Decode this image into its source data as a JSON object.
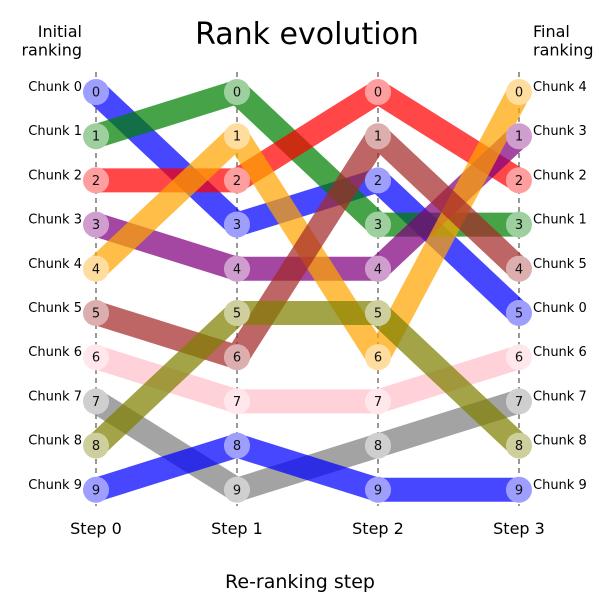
{
  "chart_data": {
    "type": "line",
    "title": "Rank evolution",
    "xlabel": "Re-ranking step",
    "left_axis_title": "Initial\nranking",
    "right_axis_title": "Final\nranking",
    "steps": [
      "Step 0",
      "Step 1",
      "Step 2",
      "Step 3"
    ],
    "rank_range": [
      0,
      9
    ],
    "initial_labels": [
      "Chunk 0",
      "Chunk 1",
      "Chunk 2",
      "Chunk 3",
      "Chunk 4",
      "Chunk 5",
      "Chunk 6",
      "Chunk 7",
      "Chunk 8",
      "Chunk 9"
    ],
    "final_labels": [
      "Chunk 4",
      "Chunk 3",
      "Chunk 2",
      "Chunk 1",
      "Chunk 5",
      "Chunk 0",
      "Chunk 6",
      "Chunk 7",
      "Chunk 8",
      "Chunk 9"
    ],
    "series": [
      {
        "chunk": 0,
        "color": "#0000ff",
        "ranks": [
          0,
          3,
          2,
          5
        ]
      },
      {
        "chunk": 1,
        "color": "#008000",
        "ranks": [
          1,
          0,
          3,
          3
        ]
      },
      {
        "chunk": 2,
        "color": "#ff0000",
        "ranks": [
          2,
          2,
          0,
          2
        ]
      },
      {
        "chunk": 3,
        "color": "#800080",
        "ranks": [
          3,
          4,
          4,
          1
        ]
      },
      {
        "chunk": 4,
        "color": "#ffa500",
        "ranks": [
          4,
          1,
          6,
          0
        ]
      },
      {
        "chunk": 5,
        "color": "#a52a2a",
        "ranks": [
          5,
          6,
          1,
          4
        ]
      },
      {
        "chunk": 6,
        "color": "#ffc0cb",
        "ranks": [
          6,
          7,
          7,
          6
        ]
      },
      {
        "chunk": 7,
        "color": "#808080",
        "ranks": [
          7,
          9,
          8,
          7
        ]
      },
      {
        "chunk": 8,
        "color": "#808000",
        "ranks": [
          8,
          5,
          5,
          8
        ]
      },
      {
        "chunk": 9,
        "color": "#0000ff",
        "ranks": [
          9,
          8,
          9,
          9
        ]
      }
    ]
  }
}
